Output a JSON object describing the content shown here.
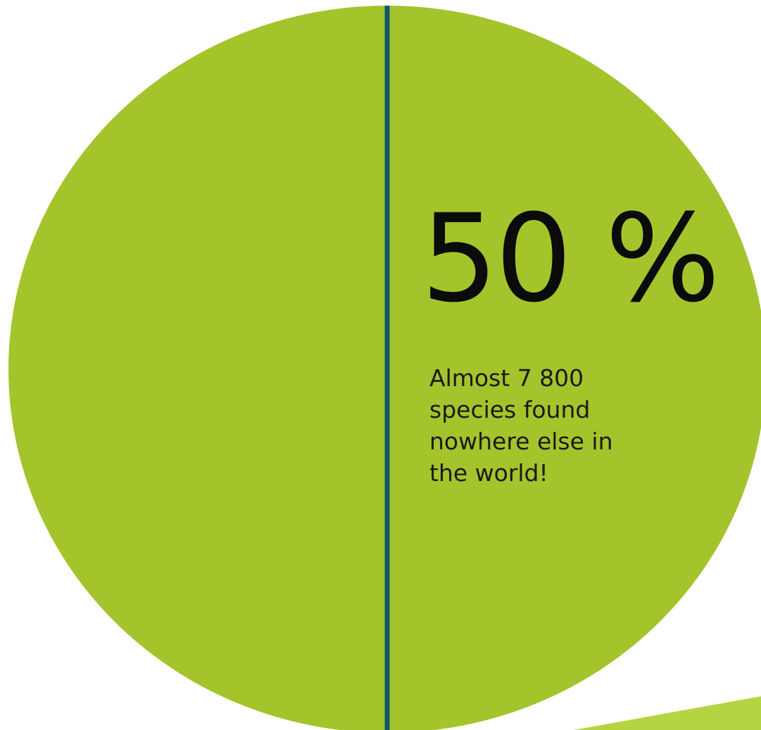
{
  "chart_data": {
    "type": "pie",
    "slices": [
      {
        "value": 50,
        "color": "#a4c42c"
      },
      {
        "value": 50,
        "color": "#a4c42c"
      }
    ],
    "divider_color": "#12586a",
    "accent_color": "#b5d441"
  },
  "labels": {
    "big_value": "50 %",
    "caption_lines": [
      "Almost 7 800",
      "species found",
      "nowhere else in",
      "the world!"
    ]
  }
}
